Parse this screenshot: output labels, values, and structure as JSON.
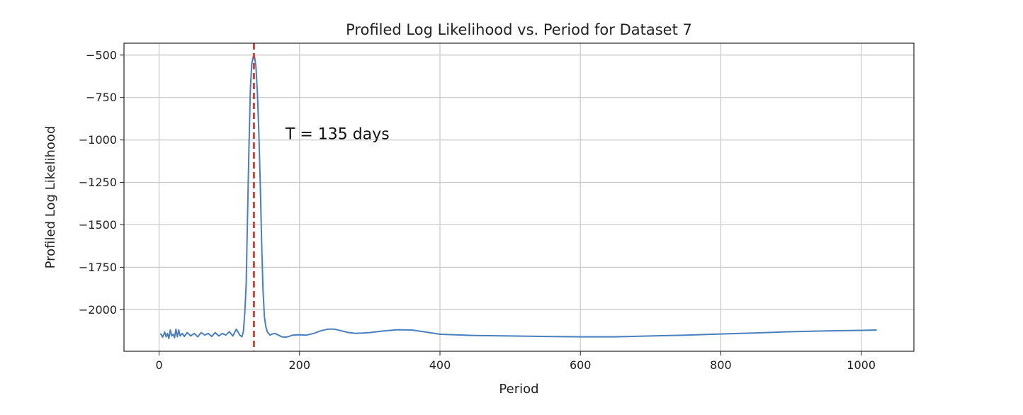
{
  "chart_data": {
    "type": "line",
    "title": "Profiled Log Likelihood vs. Period for Dataset 7",
    "xlabel": "Period",
    "ylabel": "Profiled Log Likelihood",
    "xlim": [
      -50,
      1075
    ],
    "ylim": [
      -2245,
      -430
    ],
    "xticks": [
      0,
      200,
      400,
      600,
      800,
      1000
    ],
    "yticks": [
      -500,
      -750,
      -1000,
      -1250,
      -1500,
      -1750,
      -2000
    ],
    "xtick_labels": [
      "0",
      "200",
      "400",
      "600",
      "800",
      "1000"
    ],
    "ytick_labels": [
      "−500",
      "−750",
      "−1000",
      "−1250",
      "−1500",
      "−1750",
      "−2000"
    ],
    "grid": true,
    "series": [
      {
        "color": "#4a7fbf",
        "x": [
          2,
          5,
          8,
          10,
          12,
          14,
          16,
          18,
          20,
          22,
          24,
          26,
          28,
          30,
          33,
          36,
          40,
          45,
          50,
          55,
          60,
          65,
          70,
          75,
          80,
          85,
          90,
          95,
          100,
          105,
          110,
          115,
          118,
          120,
          122,
          124,
          126,
          128,
          130,
          132,
          134,
          135,
          136,
          138,
          140,
          142,
          144,
          146,
          148,
          150,
          152,
          154,
          156,
          158,
          160,
          165,
          170,
          175,
          180,
          185,
          190,
          200,
          210,
          220,
          230,
          240,
          250,
          260,
          270,
          280,
          300,
          320,
          340,
          360,
          380,
          400,
          450,
          500,
          550,
          600,
          650,
          700,
          750,
          800,
          850,
          900,
          950,
          1000,
          1022
        ],
        "y": [
          -2140,
          -2162,
          -2132,
          -2160,
          -2140,
          -2170,
          -2120,
          -2155,
          -2145,
          -2165,
          -2115,
          -2160,
          -2120,
          -2155,
          -2140,
          -2158,
          -2135,
          -2155,
          -2140,
          -2160,
          -2135,
          -2150,
          -2140,
          -2158,
          -2135,
          -2155,
          -2140,
          -2150,
          -2130,
          -2155,
          -2115,
          -2150,
          -2160,
          -2130,
          -2020,
          -1850,
          -1450,
          -1050,
          -700,
          -550,
          -510,
          -500,
          -510,
          -570,
          -720,
          -950,
          -1250,
          -1600,
          -1880,
          -2040,
          -2100,
          -2130,
          -2140,
          -2150,
          -2145,
          -2140,
          -2150,
          -2160,
          -2162,
          -2158,
          -2150,
          -2148,
          -2150,
          -2140,
          -2125,
          -2115,
          -2115,
          -2125,
          -2135,
          -2140,
          -2135,
          -2125,
          -2118,
          -2120,
          -2132,
          -2145,
          -2152,
          -2155,
          -2158,
          -2160,
          -2160,
          -2155,
          -2150,
          -2143,
          -2137,
          -2130,
          -2125,
          -2122,
          -2120
        ]
      }
    ],
    "vline": {
      "x": 135,
      "color": "#e8382e",
      "style": "dashed"
    },
    "annotation": {
      "text": "T = 135 days",
      "x": 180,
      "y": -995
    }
  }
}
